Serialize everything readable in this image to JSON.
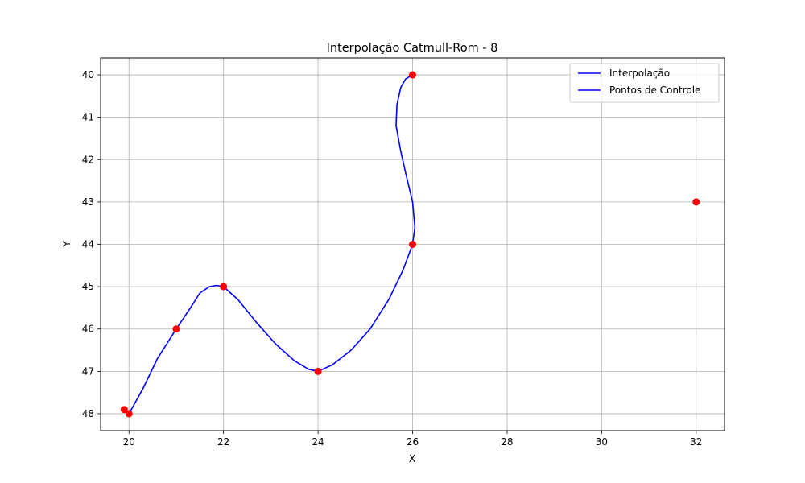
{
  "chart_data": {
    "type": "line",
    "title": "Interpolação Catmull-Rom - 8",
    "xlabel": "X",
    "ylabel": "Y",
    "xlim": [
      19.4,
      32.6
    ],
    "ylim": [
      48.4,
      39.6
    ],
    "y_inverted": true,
    "x_ticks": [
      20,
      22,
      24,
      26,
      28,
      30,
      32
    ],
    "y_ticks": [
      40,
      41,
      42,
      43,
      44,
      45,
      46,
      47,
      48
    ],
    "x_tick_labels": [
      "20",
      "22",
      "24",
      "26",
      "28",
      "30",
      "32"
    ],
    "y_tick_labels": [
      "40",
      "41",
      "42",
      "43",
      "44",
      "45",
      "46",
      "47",
      "48"
    ],
    "grid": true,
    "legend_position": "top-right",
    "series": [
      {
        "name": "Interpolação",
        "kind": "line",
        "color": "#0000ff",
        "x": [
          20.0,
          20.3,
          20.6,
          21.0,
          21.3,
          21.5,
          21.7,
          21.85,
          22.0,
          22.3,
          22.7,
          23.1,
          23.5,
          23.8,
          24.0,
          24.3,
          24.7,
          25.1,
          25.5,
          25.8,
          26.0,
          26.05,
          26.0,
          25.85,
          25.75,
          25.65,
          25.67,
          25.75,
          25.85,
          26.0
        ],
        "y": [
          48.0,
          47.4,
          46.7,
          46.0,
          45.5,
          45.15,
          45.0,
          44.97,
          45.0,
          45.3,
          45.85,
          46.35,
          46.75,
          46.95,
          47.0,
          46.85,
          46.5,
          46.0,
          45.3,
          44.6,
          44.0,
          43.6,
          43.0,
          42.3,
          41.8,
          41.2,
          40.7,
          40.3,
          40.1,
          40.0
        ]
      },
      {
        "name": "Pontos de Controle",
        "kind": "markers",
        "color": "#ff0000",
        "legend_color": "#0000ff",
        "x": [
          19.9,
          20,
          21,
          22,
          24,
          26,
          26,
          32
        ],
        "y": [
          47.9,
          48,
          46,
          45,
          47,
          44,
          40,
          43
        ]
      }
    ]
  }
}
